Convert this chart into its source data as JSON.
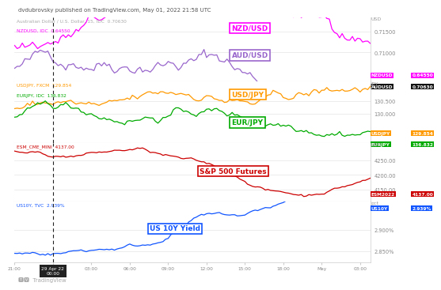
{
  "title": "dvdubrovsky published on TradingView.com, May 01, 2022 21:58 UTC",
  "subtitle_aud": "Australian Dollar / U.S. Dollar, 15, IDC  0.70630",
  "subtitle_nzd": "NZDUSD, IDC  0.64550",
  "subtitle_usdjpy": "USDJPY, FXCM  129.854",
  "subtitle_eurjpy": "EURJPY, IDC  136.832",
  "subtitle_sp500": "ESM_CME_MINI  4137.00",
  "subtitle_us10y": "US10Y, TVC  2.939%",
  "dashed_x": 15,
  "n_points": 140,
  "panel1": {
    "label_nzd": "NZD/USD",
    "label_aud": "AUD/USD",
    "color_nzd": "#ff00ff",
    "color_aud": "#9966cc",
    "ylabel": "USD",
    "yticks": [
      0.71,
      0.715
    ],
    "ytick_labels": [
      "0.71000",
      "0.71500"
    ],
    "ylim": [
      0.703,
      0.7185
    ],
    "tag_nzd_bg": "#ff00ff",
    "tag_aud_bg": "#000000",
    "tag_nzd_val": "0.64550",
    "tag_aud_val": "0.70630",
    "tag_nzd_label": "NZDUSD",
    "tag_aud_label": "AUDUSD"
  },
  "panel2": {
    "label_usdjpy": "USD/JPY",
    "label_eurjpy": "EUR/JPY",
    "color_usdjpy": "#ff9900",
    "color_eurjpy": "#00aa00",
    "ylabel": "JPY",
    "yticks": [
      130.0,
      130.5
    ],
    "ytick_labels": [
      "130.000",
      "130.500"
    ],
    "ylim": [
      128.8,
      131.3
    ],
    "tag_usdjpy_bg": "#ff9900",
    "tag_eurjpy_bg": "#00aa00",
    "tag_usdjpy_val": "129.854",
    "tag_eurjpy_val": "136.832",
    "tag_usdjpy_label": "USDJPY",
    "tag_eurjpy_label": "EURJPY"
  },
  "panel3": {
    "label": "S&P 500 Futures",
    "color": "#cc0000",
    "ylabel": "USD",
    "yticks": [
      4150,
      4200,
      4250
    ],
    "ytick_labels": [
      "4150.00",
      "4200.00",
      "4250.00"
    ],
    "ylim": [
      4110,
      4310
    ],
    "tag_bg": "#cc0000",
    "tag_val": "4137.00",
    "tag_label": "ESM2022"
  },
  "panel4": {
    "label": "US 10Y Yield",
    "color": "#1155ff",
    "ylabel": "pct",
    "yticks": [
      2.85,
      2.9
    ],
    "ytick_labels": [
      "2.850%",
      "2.900%"
    ],
    "ylim": [
      2.825,
      2.965
    ],
    "tag_bg": "#1155ff",
    "tag_val": "2.939%",
    "tag_label": "US10Y"
  },
  "x_tick_positions": [
    0,
    15,
    30,
    45,
    60,
    75,
    90,
    105,
    120,
    135
  ],
  "x_tick_labels": [
    "21:00",
    "29 Apr 22\n00:00",
    "03:00",
    "06:00",
    "09:00",
    "12:00",
    "15:00",
    "18:00",
    "May",
    "03:00"
  ]
}
